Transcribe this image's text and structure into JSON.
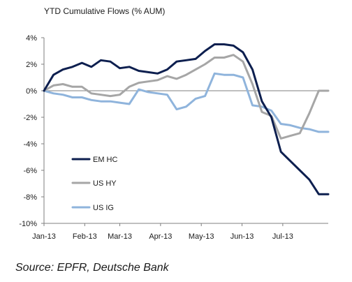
{
  "chart_data": {
    "type": "line",
    "title": "YTD Cumulative Flows (% AUM)",
    "xlabel": "",
    "ylabel": "",
    "ylim": [
      -10,
      4
    ],
    "yticks": [
      4,
      2,
      0,
      -2,
      -4,
      -6,
      -8,
      -10
    ],
    "ytick_labels": [
      "4%",
      "2%",
      "0%",
      "-2%",
      "-4%",
      "-6%",
      "-8%",
      "-10%"
    ],
    "xlim": [
      0,
      30
    ],
    "xticks": [
      0,
      4.3,
      8,
      12.3,
      16.6,
      20.9,
      25.2
    ],
    "xtick_labels": [
      "Jan-13",
      "Feb-13",
      "Mar-13",
      "Apr-13",
      "May-13",
      "Jun-13",
      "Jul-13"
    ],
    "x": [
      0,
      1,
      2,
      3,
      4,
      5,
      6,
      7,
      8,
      9,
      10,
      11,
      12,
      13,
      14,
      15,
      16,
      17,
      18,
      19,
      20,
      21,
      22,
      23,
      24,
      25,
      26,
      27,
      28,
      29,
      30
    ],
    "series": [
      {
        "name": "EM HC",
        "color": "#0d1f4f",
        "values": [
          0.0,
          1.2,
          1.6,
          1.8,
          2.1,
          1.8,
          2.3,
          2.2,
          1.7,
          1.8,
          1.5,
          1.4,
          1.3,
          1.6,
          2.2,
          2.3,
          2.4,
          3.0,
          3.5,
          3.5,
          3.4,
          2.9,
          1.6,
          -0.8,
          -2.0,
          -4.6,
          -5.3,
          -6.0,
          -6.7,
          -7.8,
          -7.8
        ]
      },
      {
        "name": "US HY",
        "color": "#a6a6a6",
        "values": [
          0.0,
          0.4,
          0.5,
          0.3,
          0.3,
          -0.2,
          -0.3,
          -0.4,
          -0.3,
          0.3,
          0.6,
          0.7,
          0.8,
          1.1,
          0.9,
          1.2,
          1.6,
          2.0,
          2.5,
          2.5,
          2.7,
          2.2,
          0.5,
          -1.6,
          -1.9,
          -3.6,
          -3.4,
          -3.2,
          -1.7,
          0.0,
          0.0
        ]
      },
      {
        "name": "US IG",
        "color": "#8fb4dc",
        "values": [
          0.0,
          -0.2,
          -0.3,
          -0.5,
          -0.5,
          -0.7,
          -0.8,
          -0.8,
          -0.9,
          -1.0,
          0.1,
          -0.1,
          -0.2,
          -0.3,
          -1.4,
          -1.2,
          -0.6,
          -0.4,
          1.3,
          1.2,
          1.2,
          1.0,
          -1.1,
          -1.2,
          -1.5,
          -2.5,
          -2.6,
          -2.8,
          -2.9,
          -3.1,
          -3.1
        ]
      }
    ],
    "legend_position": "lower-left",
    "grid": false
  },
  "source_text": "Source:  EPFR, Deutsche Bank"
}
